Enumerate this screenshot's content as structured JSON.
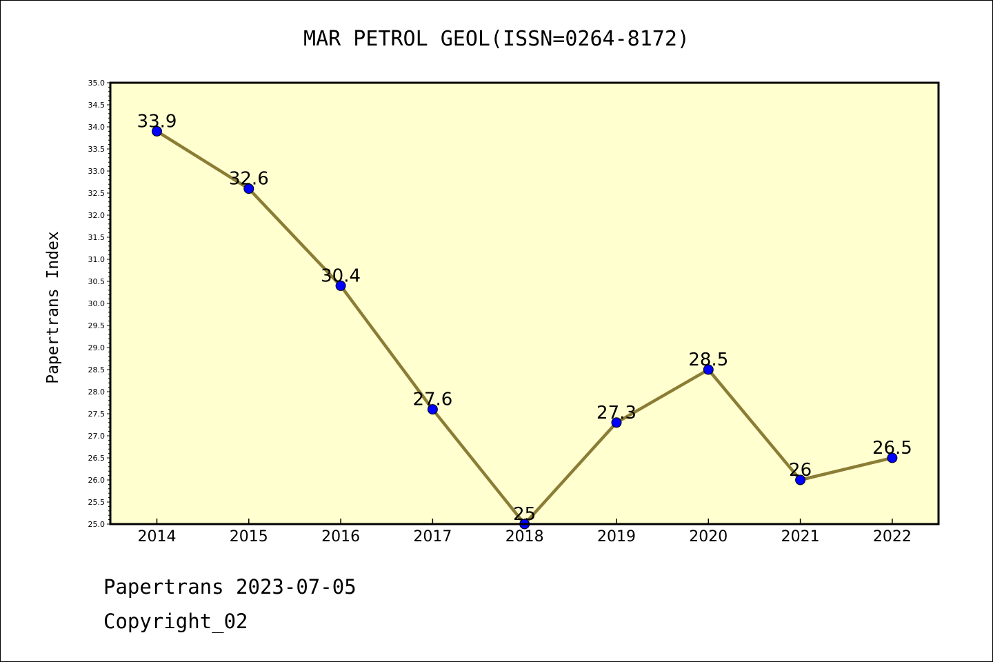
{
  "footer": {
    "line1": "Papertrans 2023-07-05",
    "line2": "Copyright_02"
  },
  "colors": {
    "plot_background": "#ffffd0",
    "line": "#8b7d35",
    "marker": "#0000ff"
  },
  "chart_data": {
    "type": "line",
    "title": "MAR PETROL GEOL(ISSN=0264-8172)",
    "xlabel": "",
    "ylabel": "Papertrans Index",
    "categories": [
      "2014",
      "2015",
      "2016",
      "2017",
      "2018",
      "2019",
      "2020",
      "2021",
      "2022"
    ],
    "series": [
      {
        "values": [
          33.9,
          32.6,
          30.4,
          27.6,
          25,
          27.3,
          28.5,
          26,
          26.5
        ],
        "data_labels": [
          "33.9",
          "32.6",
          "30.4",
          "27.6",
          "25",
          "27.3",
          "28.5",
          "26",
          "26.5"
        ]
      }
    ],
    "ylim": [
      25.0,
      35.0
    ],
    "yticks": [
      "25.0",
      "25.5",
      "26.0",
      "26.5",
      "27.0",
      "27.5",
      "28.0",
      "28.5",
      "29.0",
      "29.5",
      "30.0",
      "30.5",
      "31.0",
      "31.5",
      "32.0",
      "32.5",
      "33.0",
      "33.5",
      "34.0",
      "34.5",
      "35.0"
    ],
    "grid": false,
    "legend": "none"
  }
}
